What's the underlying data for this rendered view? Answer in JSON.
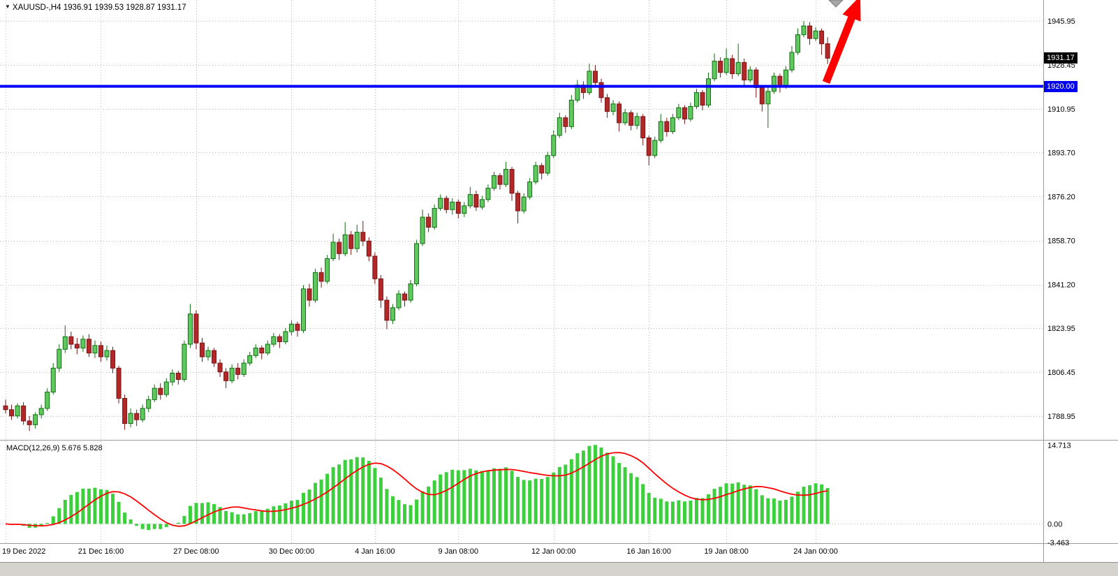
{
  "header": {
    "dropdown_icon": "▼",
    "symbol_info": "XAUUSD-,H4  1936.91 1939.53 1928.87 1931.17"
  },
  "price_axis": {
    "ticks": [
      "1945.95",
      "1928.45",
      "1910.95",
      "1893.70",
      "1876.20",
      "1858.70",
      "1841.20",
      "1823.95",
      "1806.45",
      "1788.95"
    ],
    "current_price": "1931.17"
  },
  "annotations": {
    "hline": {
      "price": 1920.0,
      "label": "1920.00"
    },
    "arrow": {
      "from": [
        1183,
        118
      ],
      "to": [
        1232,
        -6
      ]
    },
    "top_marker": {
      "x": 1197
    }
  },
  "colors": {
    "up_fill": "#5fc95f",
    "up_stroke": "#0f6e0f",
    "down_fill": "#b22828",
    "down_stroke": "#7a1515",
    "hist": "#3ecf3e",
    "signal": "#ff0000",
    "hline": "#0000ff",
    "grid": "#b9b9b9",
    "axis_text": "#000000",
    "badge_current_bg": "#000000",
    "badge_line_bg": "#0000ee",
    "arrow_color": "#ff0000",
    "marker_fill": "#a6a6a6",
    "marker_stroke": "#7d7d7d",
    "separator": "#9a9a9a",
    "strip_bg": "#d6d3ce"
  },
  "chart_data": [
    {
      "type": "candlestick",
      "title": "XAUUSD- H4",
      "ylim": [
        1779.5,
        1954.3
      ],
      "grid": true,
      "x_labels": [
        {
          "i": 0,
          "label": "19 Dec 2022"
        },
        {
          "i": 16,
          "label": "21 Dec 16:00"
        },
        {
          "i": 32,
          "label": "27 Dec 08:00"
        },
        {
          "i": 48,
          "label": "30 Dec 00:00"
        },
        {
          "i": 62,
          "label": "4 Jan 16:00"
        },
        {
          "i": 76,
          "label": "9 Jan 08:00"
        },
        {
          "i": 92,
          "label": "12 Jan 00:00"
        },
        {
          "i": 108,
          "label": "16 Jan 16:00"
        },
        {
          "i": 121,
          "label": "19 Jan 08:00"
        },
        {
          "i": 136,
          "label": "24 Jan 00:00"
        }
      ],
      "ohlc": [
        [
          1793.0,
          1795.5,
          1790.0,
          1791.5
        ],
        [
          1791.5,
          1793.5,
          1787.5,
          1789.0
        ],
        [
          1789.0,
          1794.0,
          1788.0,
          1793.0
        ],
        [
          1793.0,
          1794.5,
          1785.5,
          1787.0
        ],
        [
          1787.0,
          1789.0,
          1783.0,
          1785.5
        ],
        [
          1785.5,
          1790.5,
          1784.0,
          1789.5
        ],
        [
          1789.5,
          1793.5,
          1788.0,
          1792.0
        ],
        [
          1792.0,
          1800.0,
          1791.0,
          1798.5
        ],
        [
          1798.5,
          1810.0,
          1797.5,
          1808.0
        ],
        [
          1808.0,
          1817.5,
          1806.5,
          1815.5
        ],
        [
          1815.5,
          1825.0,
          1814.0,
          1820.5
        ],
        [
          1820.5,
          1822.5,
          1815.5,
          1817.5
        ],
        [
          1817.5,
          1820.0,
          1813.5,
          1816.0
        ],
        [
          1816.0,
          1821.0,
          1814.5,
          1819.5
        ],
        [
          1819.5,
          1821.5,
          1812.5,
          1814.0
        ],
        [
          1814.0,
          1819.0,
          1812.0,
          1817.0
        ],
        [
          1817.0,
          1818.5,
          1810.5,
          1812.5
        ],
        [
          1812.5,
          1817.0,
          1811.0,
          1815.0
        ],
        [
          1815.0,
          1816.5,
          1806.0,
          1808.0
        ],
        [
          1808.0,
          1809.0,
          1794.0,
          1796.0
        ],
        [
          1796.0,
          1797.5,
          1783.5,
          1786.0
        ],
        [
          1786.0,
          1792.0,
          1784.5,
          1790.0
        ],
        [
          1790.0,
          1791.5,
          1785.0,
          1787.5
        ],
        [
          1787.5,
          1793.5,
          1786.5,
          1792.0
        ],
        [
          1792.0,
          1797.0,
          1790.5,
          1795.5
        ],
        [
          1795.5,
          1801.5,
          1794.5,
          1800.0
        ],
        [
          1800.0,
          1802.0,
          1795.5,
          1797.5
        ],
        [
          1797.5,
          1804.0,
          1796.5,
          1802.5
        ],
        [
          1802.5,
          1807.5,
          1801.0,
          1806.0
        ],
        [
          1806.0,
          1807.0,
          1801.5,
          1803.5
        ],
        [
          1803.5,
          1819.0,
          1802.5,
          1817.5
        ],
        [
          1817.5,
          1833.5,
          1816.0,
          1829.5
        ],
        [
          1829.5,
          1831.0,
          1815.5,
          1818.0
        ],
        [
          1818.0,
          1820.0,
          1810.5,
          1812.5
        ],
        [
          1812.5,
          1816.5,
          1811.0,
          1815.0
        ],
        [
          1815.0,
          1816.0,
          1808.5,
          1810.0
        ],
        [
          1810.0,
          1811.5,
          1804.5,
          1806.5
        ],
        [
          1806.5,
          1808.0,
          1800.0,
          1803.0
        ],
        [
          1803.0,
          1809.5,
          1802.0,
          1808.0
        ],
        [
          1808.0,
          1810.0,
          1803.5,
          1805.5
        ],
        [
          1805.5,
          1811.5,
          1804.5,
          1810.0
        ],
        [
          1810.0,
          1814.5,
          1809.0,
          1813.0
        ],
        [
          1813.0,
          1817.5,
          1812.0,
          1816.0
        ],
        [
          1816.0,
          1817.0,
          1811.5,
          1814.0
        ],
        [
          1814.0,
          1819.0,
          1813.0,
          1817.5
        ],
        [
          1817.5,
          1822.0,
          1816.5,
          1820.5
        ],
        [
          1820.5,
          1821.5,
          1816.0,
          1818.5
        ],
        [
          1818.5,
          1824.0,
          1817.5,
          1822.5
        ],
        [
          1822.5,
          1827.0,
          1821.0,
          1825.5
        ],
        [
          1825.5,
          1826.5,
          1820.5,
          1823.0
        ],
        [
          1823.0,
          1841.0,
          1822.0,
          1839.5
        ],
        [
          1839.5,
          1841.5,
          1832.5,
          1835.0
        ],
        [
          1835.0,
          1847.5,
          1834.0,
          1846.0
        ],
        [
          1846.0,
          1848.0,
          1840.0,
          1842.5
        ],
        [
          1842.5,
          1853.0,
          1841.5,
          1851.5
        ],
        [
          1851.5,
          1861.5,
          1850.5,
          1858.0
        ],
        [
          1858.0,
          1859.5,
          1851.0,
          1853.5
        ],
        [
          1853.5,
          1866.0,
          1852.5,
          1861.0
        ],
        [
          1861.0,
          1862.5,
          1853.0,
          1855.5
        ],
        [
          1855.5,
          1865.0,
          1854.0,
          1862.0
        ],
        [
          1862.0,
          1866.5,
          1856.5,
          1858.5
        ],
        [
          1858.5,
          1860.0,
          1850.5,
          1852.5
        ],
        [
          1852.5,
          1854.0,
          1841.5,
          1843.5
        ],
        [
          1843.5,
          1845.0,
          1832.0,
          1835.0
        ],
        [
          1835.0,
          1836.5,
          1823.5,
          1827.0
        ],
        [
          1827.0,
          1833.5,
          1825.5,
          1832.0
        ],
        [
          1832.0,
          1839.0,
          1831.0,
          1837.5
        ],
        [
          1837.5,
          1838.5,
          1832.5,
          1835.0
        ],
        [
          1835.0,
          1843.0,
          1834.0,
          1841.5
        ],
        [
          1841.5,
          1859.0,
          1840.5,
          1857.5
        ],
        [
          1857.5,
          1871.0,
          1856.5,
          1868.0
        ],
        [
          1868.0,
          1869.5,
          1862.0,
          1864.0
        ],
        [
          1864.0,
          1873.0,
          1863.0,
          1871.5
        ],
        [
          1871.5,
          1877.0,
          1870.5,
          1875.5
        ],
        [
          1875.5,
          1876.5,
          1869.5,
          1871.0
        ],
        [
          1871.0,
          1875.5,
          1869.0,
          1874.0
        ],
        [
          1874.0,
          1875.0,
          1867.5,
          1869.5
        ],
        [
          1869.5,
          1874.0,
          1868.0,
          1872.5
        ],
        [
          1872.5,
          1880.0,
          1871.5,
          1877.0
        ],
        [
          1877.0,
          1878.5,
          1870.5,
          1872.0
        ],
        [
          1872.0,
          1876.5,
          1871.0,
          1875.0
        ],
        [
          1875.0,
          1881.0,
          1874.0,
          1879.5
        ],
        [
          1879.5,
          1886.0,
          1878.5,
          1884.5
        ],
        [
          1884.5,
          1885.5,
          1879.0,
          1881.0
        ],
        [
          1881.0,
          1890.0,
          1880.0,
          1887.0
        ],
        [
          1887.0,
          1888.0,
          1874.5,
          1877.5
        ],
        [
          1877.5,
          1878.5,
          1865.5,
          1870.5
        ],
        [
          1870.5,
          1877.5,
          1869.5,
          1876.0
        ],
        [
          1876.0,
          1883.5,
          1875.0,
          1882.0
        ],
        [
          1882.0,
          1890.0,
          1881.0,
          1888.5
        ],
        [
          1888.5,
          1889.5,
          1883.0,
          1885.5
        ],
        [
          1885.5,
          1894.0,
          1884.5,
          1892.5
        ],
        [
          1892.5,
          1902.5,
          1891.5,
          1900.5
        ],
        [
          1900.5,
          1909.5,
          1899.5,
          1907.5
        ],
        [
          1907.5,
          1908.5,
          1901.5,
          1904.0
        ],
        [
          1904.0,
          1916.5,
          1903.0,
          1914.5
        ],
        [
          1914.5,
          1922.5,
          1913.5,
          1920.5
        ],
        [
          1920.5,
          1922.0,
          1915.0,
          1917.5
        ],
        [
          1917.5,
          1929.0,
          1916.5,
          1926.0
        ],
        [
          1926.0,
          1928.5,
          1919.5,
          1921.5
        ],
        [
          1921.5,
          1923.0,
          1913.5,
          1915.5
        ],
        [
          1915.5,
          1917.0,
          1907.5,
          1910.0
        ],
        [
          1910.0,
          1914.5,
          1908.5,
          1913.0
        ],
        [
          1913.0,
          1914.0,
          1902.0,
          1905.5
        ],
        [
          1905.5,
          1911.0,
          1904.5,
          1909.5
        ],
        [
          1909.5,
          1910.5,
          1902.5,
          1904.5
        ],
        [
          1904.5,
          1909.5,
          1903.0,
          1908.0
        ],
        [
          1908.0,
          1909.0,
          1896.5,
          1899.5
        ],
        [
          1899.5,
          1900.5,
          1888.5,
          1892.5
        ],
        [
          1892.5,
          1900.0,
          1891.5,
          1898.5
        ],
        [
          1898.5,
          1909.0,
          1897.5,
          1906.0
        ],
        [
          1906.0,
          1907.5,
          1900.0,
          1902.0
        ],
        [
          1902.0,
          1909.0,
          1901.0,
          1907.5
        ],
        [
          1907.5,
          1913.0,
          1906.5,
          1911.5
        ],
        [
          1911.5,
          1912.5,
          1905.0,
          1907.0
        ],
        [
          1907.0,
          1913.5,
          1906.0,
          1912.0
        ],
        [
          1912.0,
          1919.0,
          1911.0,
          1917.5
        ],
        [
          1917.5,
          1918.5,
          1910.5,
          1912.5
        ],
        [
          1912.5,
          1925.5,
          1911.5,
          1923.0
        ],
        [
          1923.0,
          1933.0,
          1922.0,
          1930.0
        ],
        [
          1930.0,
          1931.5,
          1923.5,
          1925.5
        ],
        [
          1925.5,
          1935.0,
          1924.5,
          1931.0
        ],
        [
          1931.0,
          1932.5,
          1923.0,
          1925.0
        ],
        [
          1925.0,
          1937.0,
          1924.0,
          1929.5
        ],
        [
          1929.5,
          1931.0,
          1920.5,
          1922.5
        ],
        [
          1922.5,
          1928.0,
          1921.5,
          1926.5
        ],
        [
          1926.5,
          1927.5,
          1915.5,
          1919.5
        ],
        [
          1919.5,
          1920.5,
          1910.0,
          1913.0
        ],
        [
          1913.0,
          1919.5,
          1903.5,
          1918.0
        ],
        [
          1918.0,
          1925.5,
          1917.0,
          1924.0
        ],
        [
          1924.0,
          1925.0,
          1917.5,
          1920.0
        ],
        [
          1920.0,
          1928.0,
          1919.0,
          1926.5
        ],
        [
          1926.5,
          1936.0,
          1925.5,
          1933.5
        ],
        [
          1933.5,
          1943.0,
          1932.5,
          1940.5
        ],
        [
          1940.5,
          1945.9,
          1939.5,
          1944.0
        ],
        [
          1944.0,
          1945.5,
          1936.5,
          1939.0
        ],
        [
          1939.0,
          1943.5,
          1938.0,
          1942.0
        ],
        [
          1942.0,
          1943.0,
          1932.5,
          1936.9
        ],
        [
          1936.91,
          1939.53,
          1928.87,
          1931.17
        ]
      ]
    },
    {
      "type": "macd",
      "label": "MACD(12,26,9) 5.676 5.828",
      "params": [
        12,
        26,
        9
      ],
      "current_values": "5.676 5.828",
      "derived": "histogram = EMA12(close) - EMA26(close); signal = SMA9(histogram); values scaled so max = 14.713",
      "ylim": [
        -3.6,
        15.4
      ],
      "ticks": [
        14.713,
        0.0,
        -3.463
      ],
      "tick_labels": [
        "14.713",
        "0.00",
        "-3.463"
      ]
    }
  ]
}
